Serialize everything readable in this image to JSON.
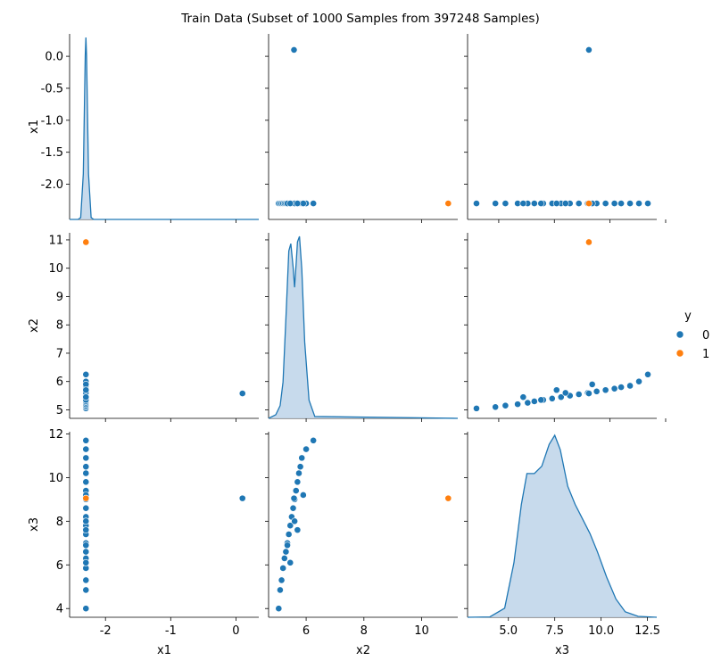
{
  "title": "Train Data (Subset of 1000 Samples from 397248 Samples)",
  "chart_data": {
    "type": "scatter",
    "layout": "pairplot",
    "variables": [
      "x1",
      "x2",
      "x3"
    ],
    "hue": "y",
    "legend": {
      "title": "y",
      "placement": "right",
      "entries": [
        {
          "label": "0",
          "color": "#1f77b4"
        },
        {
          "label": "1",
          "color": "#ff7f0e"
        }
      ]
    },
    "colors": {
      "class0": "#1f77b4",
      "class1": "#ff7f0e",
      "kde_fill": "#c1d6ea"
    },
    "axes": {
      "x1": {
        "range": [
          -2.55,
          0.35
        ],
        "ticks": [
          "0.0",
          "-0.5",
          "-1.0",
          "-1.5",
          "-2.0"
        ],
        "tick_values": [
          0.0,
          -0.5,
          -1.0,
          -1.5,
          -2.0
        ],
        "xticks": [
          "-2",
          "-1",
          "0"
        ],
        "xtick_values": [
          -2,
          -1,
          0
        ]
      },
      "x2": {
        "range": [
          4.7,
          11.25
        ],
        "ticks": [
          "11",
          "10",
          "9",
          "8",
          "7",
          "6",
          "5"
        ],
        "tick_values": [
          11,
          10,
          9,
          8,
          7,
          6,
          5
        ],
        "xticks": [
          "6",
          "8",
          "10"
        ],
        "xtick_values": [
          6,
          8,
          10
        ]
      },
      "x3": {
        "range": [
          3.6,
          12.1
        ],
        "ticks": [
          "12",
          "10",
          "8",
          "6",
          "4"
        ],
        "tick_values": [
          12,
          10,
          8,
          6,
          4
        ],
        "xticks": [
          "5.0",
          "7.5",
          "10.0",
          "12.5"
        ],
        "xtick_values": [
          5.0,
          7.5,
          10.0,
          12.5
        ],
        "diag_range": [
          2.8,
          13.0
        ]
      }
    },
    "points_class0": [
      {
        "x1": -2.3,
        "x2": 5.05,
        "x3": 4.0
      },
      {
        "x1": -2.3,
        "x2": 5.1,
        "x3": 4.85
      },
      {
        "x1": -2.3,
        "x2": 5.15,
        "x3": 5.3
      },
      {
        "x1": -2.3,
        "x2": 5.2,
        "x3": 5.85
      },
      {
        "x1": -2.3,
        "x2": 5.25,
        "x3": 6.3
      },
      {
        "x1": -2.3,
        "x2": 5.3,
        "x3": 6.6
      },
      {
        "x1": -2.3,
        "x2": 5.35,
        "x3": 7.0
      },
      {
        "x1": -2.3,
        "x2": 5.4,
        "x3": 7.4
      },
      {
        "x1": -2.3,
        "x2": 5.45,
        "x3": 7.8
      },
      {
        "x1": -2.3,
        "x2": 5.5,
        "x3": 8.2
      },
      {
        "x1": -2.3,
        "x2": 5.55,
        "x3": 8.6
      },
      {
        "x1": -2.3,
        "x2": 5.6,
        "x3": 9.0
      },
      {
        "x1": -2.3,
        "x2": 5.65,
        "x3": 9.4
      },
      {
        "x1": -2.3,
        "x2": 5.7,
        "x3": 9.8
      },
      {
        "x1": -2.3,
        "x2": 5.75,
        "x3": 10.2
      },
      {
        "x1": -2.3,
        "x2": 5.8,
        "x3": 10.5
      },
      {
        "x1": -2.3,
        "x2": 5.85,
        "x3": 10.9
      },
      {
        "x1": -2.3,
        "x2": 6.0,
        "x3": 11.3
      },
      {
        "x1": -2.3,
        "x2": 6.25,
        "x3": 11.7
      },
      {
        "x1": -2.3,
        "x2": 5.9,
        "x3": 9.2
      },
      {
        "x1": -2.3,
        "x2": 5.6,
        "x3": 8.0
      },
      {
        "x1": -2.3,
        "x2": 5.35,
        "x3": 6.9
      },
      {
        "x1": -2.3,
        "x2": 5.7,
        "x3": 7.6
      },
      {
        "x1": -2.3,
        "x2": 5.45,
        "x3": 6.1
      },
      {
        "x1": 0.1,
        "x2": 5.58,
        "x3": 9.05
      }
    ],
    "points_class1": [
      {
        "x1": -2.3,
        "x2": 10.92,
        "x3": 9.05
      }
    ],
    "kde": {
      "x1": {
        "x": [
          -2.55,
          -2.42,
          -2.38,
          -2.34,
          -2.31,
          -2.3,
          -2.29,
          -2.26,
          -2.22,
          -2.18,
          0.35
        ],
        "density": [
          0.0,
          0.0,
          0.01,
          0.25,
          0.9,
          1.0,
          0.9,
          0.25,
          0.01,
          0.0,
          0.0
        ]
      },
      "x2": {
        "x": [
          4.7,
          4.95,
          5.1,
          5.2,
          5.3,
          5.4,
          5.47,
          5.55,
          5.6,
          5.65,
          5.7,
          5.77,
          5.85,
          5.95,
          6.1,
          6.3,
          11.25
        ],
        "density": [
          0.0,
          0.02,
          0.07,
          0.2,
          0.55,
          0.92,
          0.96,
          0.83,
          0.72,
          0.84,
          0.97,
          1.0,
          0.82,
          0.42,
          0.1,
          0.01,
          0.0
        ]
      },
      "x3": {
        "x": [
          2.8,
          4.0,
          4.8,
          5.3,
          5.7,
          6.0,
          6.4,
          6.8,
          7.2,
          7.5,
          7.8,
          8.2,
          8.6,
          9.0,
          9.4,
          9.8,
          10.3,
          10.8,
          11.3,
          12.0,
          13.0
        ],
        "density": [
          0.0,
          0.002,
          0.05,
          0.3,
          0.62,
          0.79,
          0.79,
          0.83,
          0.95,
          1.0,
          0.92,
          0.72,
          0.62,
          0.54,
          0.46,
          0.36,
          0.22,
          0.1,
          0.03,
          0.005,
          0.0
        ]
      }
    }
  }
}
